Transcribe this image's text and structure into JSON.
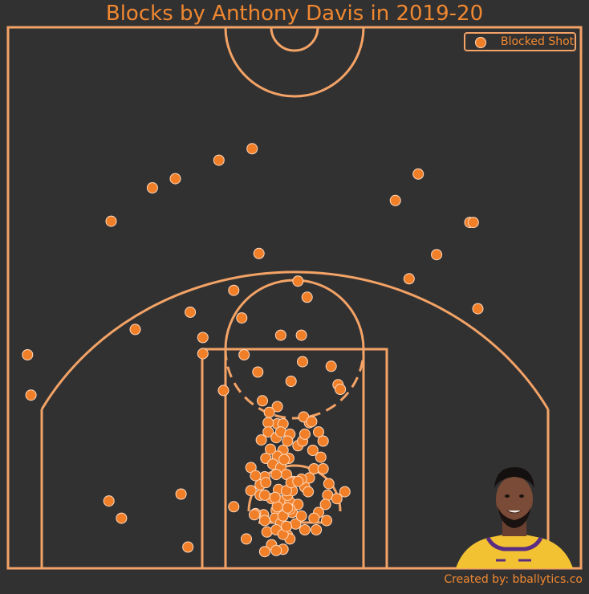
{
  "colors": {
    "background": "#323132",
    "court_lines": "#f3a366",
    "title": "#f08830",
    "marker_fill": "#f07f28",
    "marker_edge": "#ffd9bd"
  },
  "credit": "Created by: bballytics.co",
  "chart_data": {
    "type": "scatter",
    "title": "Blocks by Anthony Davis in 2019-20",
    "xlabel": "",
    "ylabel": "",
    "xlim": [
      -250,
      250
    ],
    "ylim": [
      -47.5,
      422.5
    ],
    "grid": false,
    "legend": {
      "position": "top-right",
      "entries": [
        "Blocked Shot"
      ]
    },
    "series": [
      {
        "name": "Blocked Shot",
        "points": [
          [
            -37,
            317
          ],
          [
            -66,
            307
          ],
          [
            -104,
            291
          ],
          [
            -124,
            283
          ],
          [
            -160,
            254
          ],
          [
            108,
            295
          ],
          [
            88,
            272
          ],
          [
            153,
            253
          ],
          [
            156,
            253
          ],
          [
            124,
            225
          ],
          [
            -31,
            226
          ],
          [
            3,
            202
          ],
          [
            11,
            188
          ],
          [
            -53,
            194
          ],
          [
            -91,
            175
          ],
          [
            -139,
            160
          ],
          [
            -80,
            153
          ],
          [
            -80,
            139
          ],
          [
            -46,
            170
          ],
          [
            -12,
            155
          ],
          [
            6,
            155
          ],
          [
            100,
            204
          ],
          [
            160,
            178
          ],
          [
            -44,
            138
          ],
          [
            -32,
            123
          ],
          [
            7,
            132
          ],
          [
            32,
            128
          ],
          [
            -3,
            115
          ],
          [
            -233,
            138
          ],
          [
            -230,
            103
          ],
          [
            -62,
            107
          ],
          [
            38,
            112
          ],
          [
            40,
            108
          ],
          [
            -28,
            98
          ],
          [
            -15,
            93
          ],
          [
            -22,
            88
          ],
          [
            -15,
            78
          ],
          [
            -23,
            79
          ],
          [
            -10,
            78
          ],
          [
            -23,
            71
          ],
          [
            -16,
            66
          ],
          [
            -29,
            64
          ],
          [
            -12,
            71
          ],
          [
            -4,
            69
          ],
          [
            -6,
            63
          ],
          [
            -10,
            55
          ],
          [
            -15,
            50
          ],
          [
            -25,
            48
          ],
          [
            -19,
            43
          ],
          [
            -12,
            40
          ],
          [
            -7,
            34
          ],
          [
            -1,
            28
          ],
          [
            -5,
            48
          ],
          [
            3,
            59
          ],
          [
            7,
            63
          ],
          [
            9,
            69
          ],
          [
            13,
            79
          ],
          [
            8,
            84
          ],
          [
            15,
            80
          ],
          [
            21,
            71
          ],
          [
            25,
            63
          ],
          [
            16,
            55
          ],
          [
            23,
            49
          ],
          [
            17,
            39
          ],
          [
            -16,
            34
          ],
          [
            -26,
            32
          ],
          [
            -30,
            25
          ],
          [
            -38,
            20
          ],
          [
            -30,
            16
          ],
          [
            -20,
            13
          ],
          [
            -12,
            11
          ],
          [
            -16,
            3
          ],
          [
            -2,
            1
          ],
          [
            -4,
            10
          ],
          [
            9,
            23
          ],
          [
            13,
            31
          ],
          [
            25,
            39
          ],
          [
            30,
            26
          ],
          [
            29,
            16
          ],
          [
            27,
            8
          ],
          [
            21,
            1
          ],
          [
            28,
            -6
          ],
          [
            37,
            13
          ],
          [
            44,
            19
          ],
          [
            -38,
            40
          ],
          [
            -34,
            33
          ],
          [
            -25,
            27
          ],
          [
            -14,
            21
          ],
          [
            -6,
            16
          ],
          [
            3,
            8
          ],
          [
            -2,
            20
          ],
          [
            6,
            30
          ],
          [
            -9,
            47
          ],
          [
            -21,
            56
          ],
          [
            -27,
            -1
          ],
          [
            -17,
            -4
          ],
          [
            -24,
            -16
          ],
          [
            -12,
            -8
          ],
          [
            -6,
            -19
          ],
          [
            -20,
            -27
          ],
          [
            -10,
            -31
          ],
          [
            -26,
            -6
          ],
          [
            -16,
            -14
          ],
          [
            -34,
            0
          ],
          [
            -42,
            -22
          ],
          [
            -10,
            -2
          ],
          [
            1,
            -9
          ],
          [
            9,
            -14
          ],
          [
            19,
            -14
          ],
          [
            17,
            -4
          ],
          [
            -4,
            -22
          ],
          [
            -53,
            6
          ],
          [
            -99,
            17
          ],
          [
            -151,
            -4
          ],
          [
            -162,
            11
          ],
          [
            -93,
            -29
          ],
          [
            -16,
            -32
          ],
          [
            -26,
            -33
          ],
          [
            -15,
            6
          ],
          [
            -4,
            4
          ],
          [
            -10,
            -18
          ],
          [
            -7,
            -11
          ],
          [
            6,
            -2
          ],
          [
            -17,
            14
          ],
          [
            -7,
            20
          ],
          [
            -6,
            5
          ],
          [
            -3,
            27
          ],
          [
            3,
            28
          ],
          [
            12,
            19
          ],
          [
            -35,
            -1
          ],
          [
            -26,
            16
          ]
        ]
      }
    ]
  }
}
